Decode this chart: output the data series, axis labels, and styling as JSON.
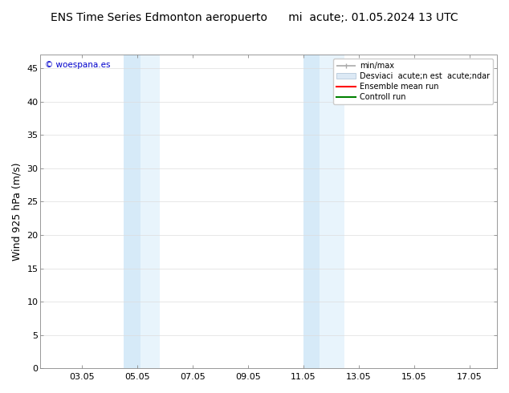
{
  "title": "ENS Time Series Edmonton aeropuerto      mi  acute;. 01.05.2024 13 UTC",
  "ylabel": "Wind 925 hPa (m/s)",
  "watermark": "© woespana.es",
  "bg_color": "#ffffff",
  "plot_bg_color": "#ffffff",
  "ylim": [
    0,
    47
  ],
  "yticks": [
    0,
    5,
    10,
    15,
    20,
    25,
    30,
    35,
    40,
    45
  ],
  "xlim": [
    1.5,
    18.0
  ],
  "xtick_labels": [
    "03.05",
    "05.05",
    "07.05",
    "09.05",
    "11.05",
    "13.05",
    "15.05",
    "17.05"
  ],
  "xtick_positions": [
    3,
    5,
    7,
    9,
    11,
    13,
    15,
    17
  ],
  "shaded_bands": [
    {
      "x_start": 4.5,
      "x_end": 5.1,
      "color": "#d6eaf8",
      "alpha": 1.0
    },
    {
      "x_start": 5.1,
      "x_end": 5.8,
      "color": "#e8f4fc",
      "alpha": 1.0
    },
    {
      "x_start": 11.0,
      "x_end": 11.6,
      "color": "#d6eaf8",
      "alpha": 1.0
    },
    {
      "x_start": 11.6,
      "x_end": 12.5,
      "color": "#e8f4fc",
      "alpha": 1.0
    }
  ],
  "tick_fontsize": 8,
  "label_fontsize": 9,
  "title_fontsize": 10,
  "watermark_color": "#0000cc",
  "border_color": "#888888",
  "grid_color": "#dddddd",
  "legend_min_max_color": "#aaaaaa",
  "legend_std_facecolor": "#dce9f5",
  "legend_std_edgecolor": "#aac0d5",
  "legend_ensemble_color": "#ff0000",
  "legend_control_color": "#008000",
  "legend_label_min_max": "min/max",
  "legend_label_std": "Desviaci  acute;n est  acute;ndar",
  "legend_label_ensemble": "Ensemble mean run",
  "legend_label_control": "Controll run"
}
